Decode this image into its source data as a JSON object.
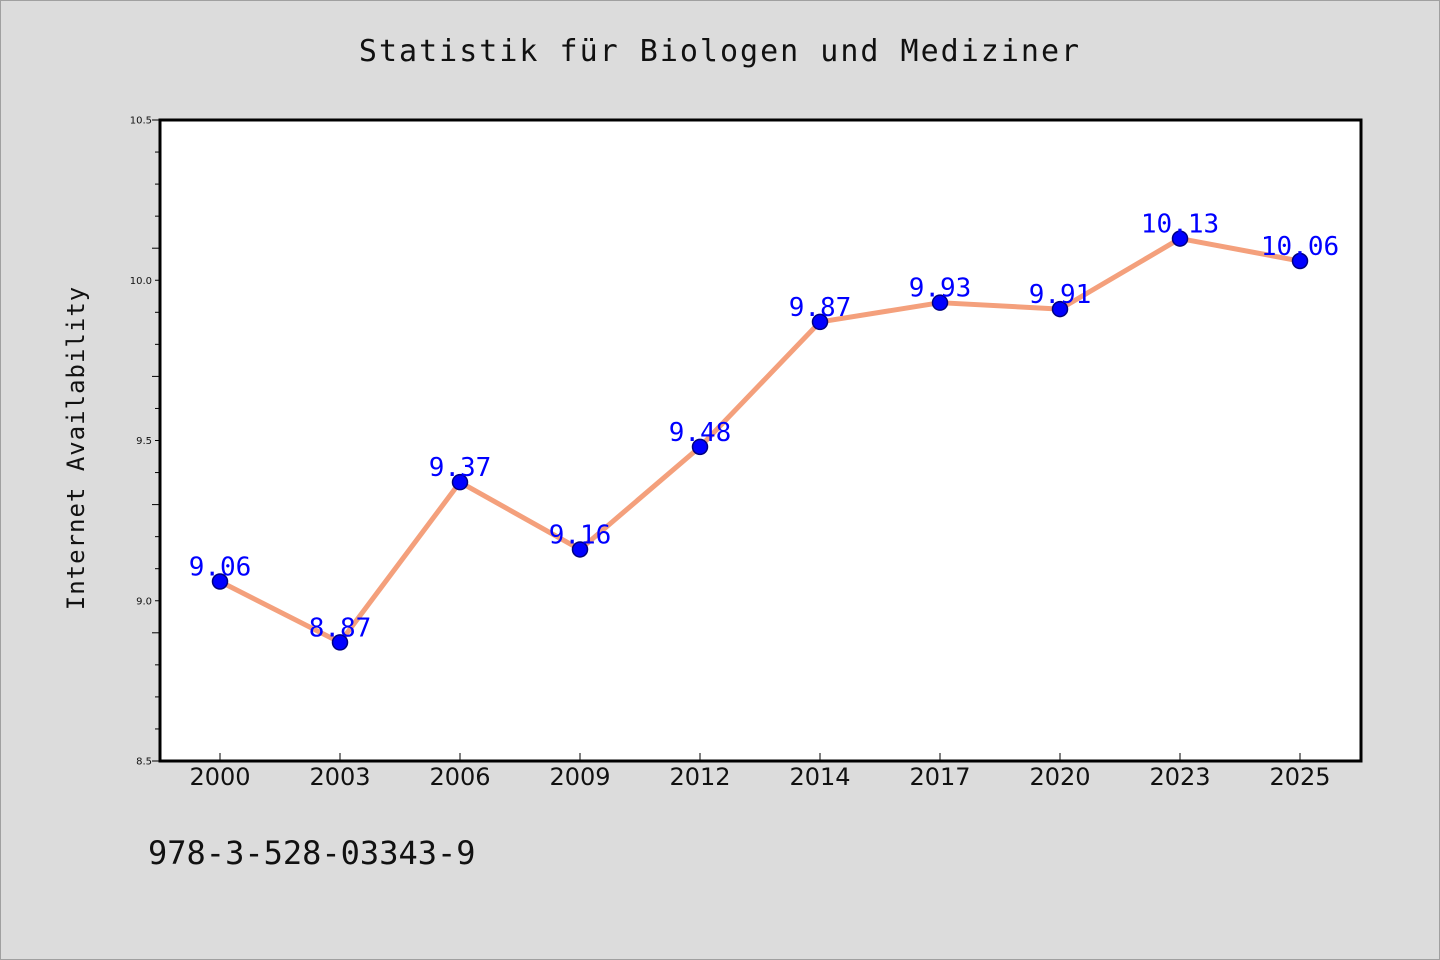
{
  "chart_data": {
    "type": "line",
    "title": "Statistik für Biologen und Mediziner",
    "xlabel": "",
    "ylabel": "Internet Availability",
    "categories": [
      "2000",
      "2003",
      "2006",
      "2009",
      "2012",
      "2014",
      "2017",
      "2020",
      "2023",
      "2025"
    ],
    "series": [
      {
        "values": [
          9.06,
          8.87,
          9.37,
          9.16,
          9.48,
          9.87,
          9.93,
          9.91,
          10.13,
          10.06
        ],
        "labels": [
          "9.06",
          "8.87",
          "9.37",
          "9.16",
          "9.48",
          "9.87",
          "9.93",
          "9.91",
          "10.13",
          "10.06"
        ]
      }
    ],
    "ylim": [
      8.5,
      10.5
    ],
    "yticks": [
      "8.5",
      "9.0",
      "9.5",
      "10.0",
      "10.5"
    ],
    "grid": false,
    "colors": {
      "line": "#f4a07c",
      "marker": "#0000ff",
      "marker_edge": "#000080",
      "data_label": "#0000ff",
      "background": "#dcdcdc",
      "plot_area": "#ffffff"
    }
  },
  "footer": {
    "isbn": "978-3-528-03343-9"
  }
}
